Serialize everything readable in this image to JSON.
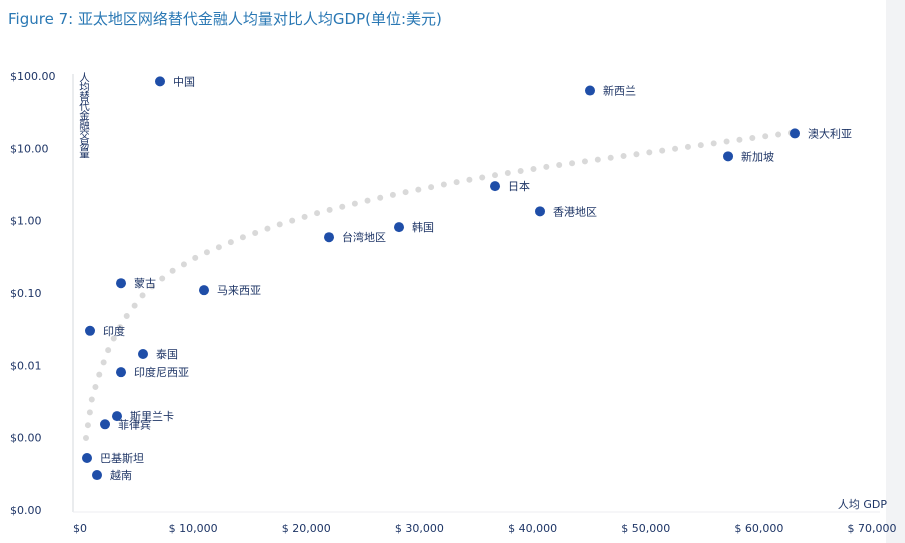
{
  "chart_data": {
    "type": "scatter",
    "title": "Figure 7: 亚太地区网络替代金融人均量对比人均GDP(单位:美元)",
    "y_label": "人均替代金融交易量",
    "x_label": "人均 GDP",
    "log_y": true,
    "xlim": [
      0,
      70000
    ],
    "ylim": [
      0.0001,
      100
    ],
    "xticks": [
      {
        "value": 0,
        "label": "$0"
      },
      {
        "value": 10000,
        "label": "$ 10,000"
      },
      {
        "value": 20000,
        "label": "$ 20,000"
      },
      {
        "value": 30000,
        "label": "$ 30,000"
      },
      {
        "value": 40000,
        "label": "$ 40,000"
      },
      {
        "value": 50000,
        "label": "$ 50,000"
      },
      {
        "value": 60000,
        "label": "$ 60,000"
      },
      {
        "value": 70000,
        "label": "$ 70,000"
      }
    ],
    "yticks": [
      {
        "value": 100,
        "label": "$100.00"
      },
      {
        "value": 10,
        "label": "$10.00"
      },
      {
        "value": 1,
        "label": "$1.00"
      },
      {
        "value": 0.1,
        "label": "$0.10"
      },
      {
        "value": 0.01,
        "label": "$0.01"
      },
      {
        "value": 0.001,
        "label": "$0.00"
      },
      {
        "value": 0.0001,
        "label": "$0.00"
      }
    ],
    "series": [
      {
        "color": "#1f4ea8",
        "labels": [
          "中国",
          "新西兰",
          "澳大利亚",
          "新加坡",
          "日本",
          "香港地区",
          "韩国",
          "台湾地区",
          "马来西亚",
          "蒙古",
          "印度",
          "泰国",
          "印度尼西亚",
          "斯里兰卡",
          "菲律宾",
          "巴基斯坦",
          "越南"
        ],
        "x": [
          7071,
          45076,
          63195,
          57274,
          36680,
          40657,
          28195,
          22008,
          10960,
          3624,
          884,
          5568,
          3624,
          3270,
          2210,
          619,
          1503
        ],
        "values": [
          87,
          65,
          16.6,
          8.0,
          3.1,
          1.39,
          0.84,
          0.61,
          0.113,
          0.141,
          0.031,
          0.0148,
          0.0083,
          0.00205,
          0.00158,
          0.00054,
          0.000314
        ]
      },
      {
        "color": "#d9d9d9",
        "style": "dotted",
        "x": [
          530,
          1061,
          1768,
          2652,
          3977,
          5745,
          7955,
          10606,
          14142,
          17677,
          21212,
          24748,
          28283,
          32703,
          37122,
          41541,
          45960,
          50380,
          54799,
          59218,
          63195
        ],
        "values": [
          0.00102,
          0.00364,
          0.0083,
          0.0196,
          0.0463,
          0.106,
          0.2,
          0.344,
          0.59,
          0.92,
          1.35,
          1.85,
          2.47,
          3.39,
          4.52,
          5.82,
          7.28,
          9.1,
          11.4,
          14.2,
          17.2
        ]
      }
    ]
  }
}
